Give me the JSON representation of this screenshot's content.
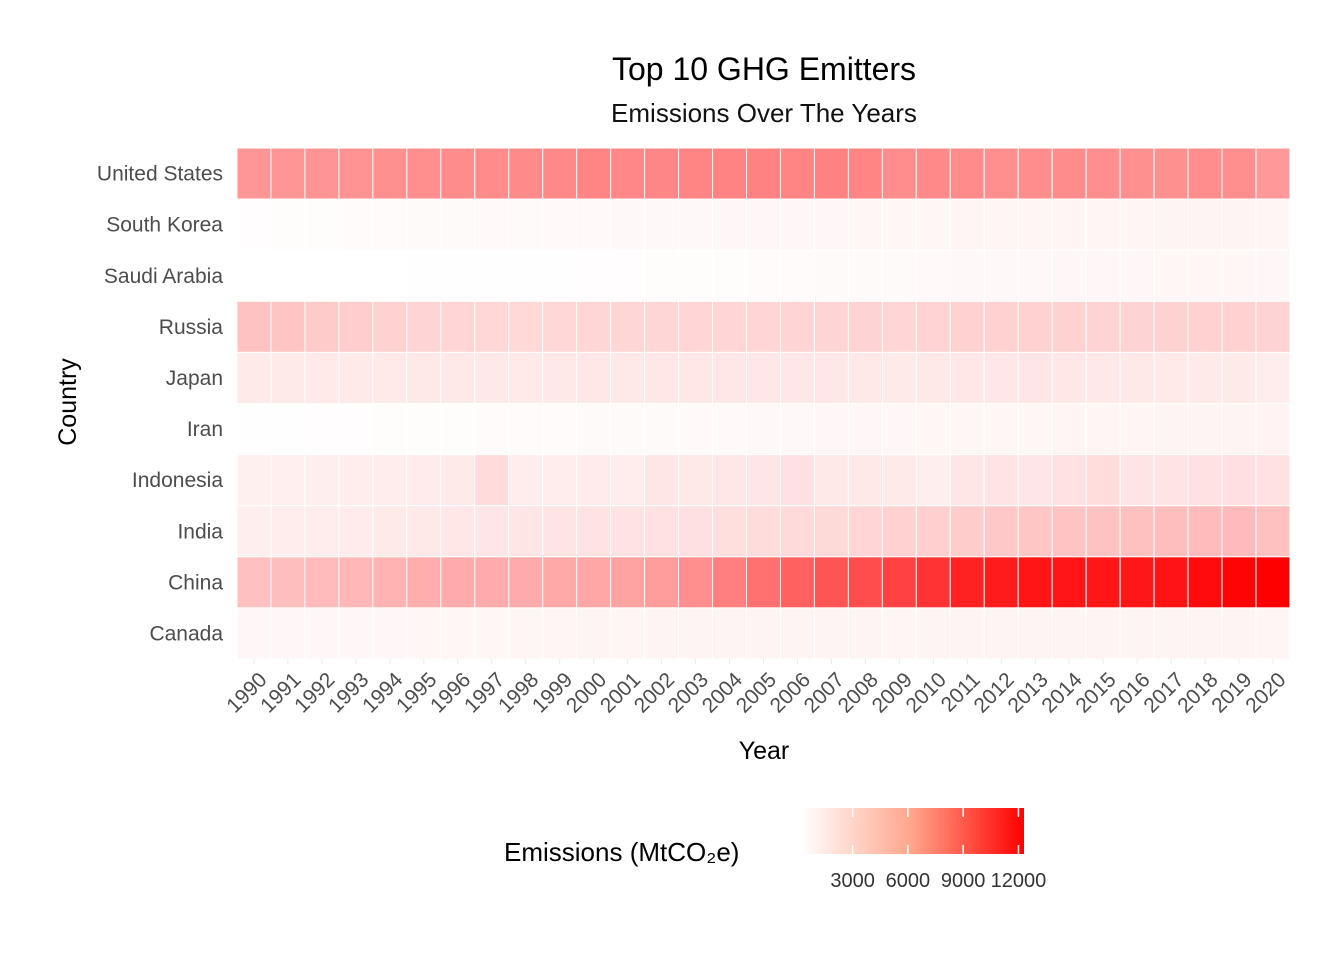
{
  "chart_data": {
    "type": "heatmap",
    "title": "Top 10 GHG Emitters",
    "subtitle": "Emissions Over The Years",
    "xlabel": "Year",
    "ylabel": "Country",
    "x": [
      "1990",
      "1991",
      "1992",
      "1993",
      "1994",
      "1995",
      "1996",
      "1997",
      "1998",
      "1999",
      "2000",
      "2001",
      "2002",
      "2003",
      "2004",
      "2005",
      "2006",
      "2007",
      "2008",
      "2009",
      "2010",
      "2011",
      "2012",
      "2013",
      "2014",
      "2015",
      "2016",
      "2017",
      "2018",
      "2019",
      "2020"
    ],
    "y": [
      "United States",
      "South Korea",
      "Saudi Arabia",
      "Russia",
      "Japan",
      "Iran",
      "Indonesia",
      "India",
      "China",
      "Canada"
    ],
    "values": [
      [
        5200,
        5250,
        5300,
        5380,
        5450,
        5500,
        5650,
        5720,
        5750,
        5800,
        6000,
        5900,
        5950,
        6000,
        6100,
        6120,
        6050,
        6150,
        6000,
        5600,
        5800,
        5700,
        5500,
        5600,
        5650,
        5550,
        5450,
        5450,
        5600,
        5550,
        5100
      ],
      [
        300,
        320,
        340,
        370,
        400,
        420,
        450,
        480,
        430,
        470,
        500,
        520,
        540,
        550,
        570,
        580,
        590,
        600,
        610,
        610,
        640,
        660,
        670,
        680,
        680,
        690,
        690,
        700,
        720,
        700,
        670
      ],
      [
        160,
        180,
        200,
        210,
        220,
        230,
        240,
        250,
        260,
        270,
        290,
        300,
        320,
        340,
        360,
        380,
        400,
        420,
        440,
        460,
        490,
        510,
        530,
        550,
        570,
        590,
        600,
        610,
        620,
        620,
        600
      ],
      [
        3100,
        2950,
        2700,
        2550,
        2350,
        2250,
        2200,
        2100,
        2050,
        2100,
        2150,
        2150,
        2150,
        2200,
        2200,
        2200,
        2250,
        2250,
        2300,
        2200,
        2300,
        2350,
        2400,
        2350,
        2350,
        2300,
        2300,
        2350,
        2400,
        2400,
        2300
      ],
      [
        1200,
        1220,
        1230,
        1220,
        1260,
        1280,
        1290,
        1290,
        1260,
        1300,
        1320,
        1300,
        1330,
        1330,
        1330,
        1330,
        1320,
        1340,
        1270,
        1200,
        1270,
        1320,
        1350,
        1370,
        1320,
        1290,
        1270,
        1250,
        1220,
        1180,
        1120
      ],
      [
        250,
        270,
        290,
        310,
        330,
        340,
        350,
        370,
        390,
        400,
        420,
        440,
        460,
        480,
        500,
        520,
        540,
        560,
        580,
        600,
        610,
        620,
        630,
        640,
        660,
        670,
        690,
        700,
        720,
        740,
        750
      ],
      [
        900,
        950,
        1000,
        1050,
        1050,
        1150,
        1200,
        1900,
        1100,
        1100,
        1150,
        1100,
        1400,
        1300,
        1350,
        1400,
        1600,
        1300,
        1300,
        1200,
        1000,
        1400,
        1500,
        1400,
        1600,
        1800,
        1500,
        1500,
        1600,
        1700,
        1600
      ],
      [
        1000,
        1050,
        1100,
        1150,
        1200,
        1270,
        1330,
        1380,
        1420,
        1500,
        1550,
        1580,
        1630,
        1680,
        1770,
        1850,
        1950,
        2070,
        2200,
        2400,
        2500,
        2620,
        2800,
        2900,
        3050,
        3100,
        3200,
        3300,
        3450,
        3450,
        3200
      ],
      [
        3200,
        3300,
        3450,
        3600,
        3800,
        4100,
        4200,
        4200,
        4200,
        4300,
        4400,
        4600,
        4900,
        5500,
        6300,
        7000,
        7700,
        8300,
        8700,
        9200,
        9900,
        10700,
        11000,
        11300,
        11300,
        11200,
        11200,
        11400,
        11800,
        12100,
        12300
      ],
      [
        580,
        570,
        580,
        590,
        600,
        620,
        640,
        650,
        660,
        670,
        700,
        690,
        700,
        720,
        720,
        720,
        710,
        730,
        720,
        680,
        700,
        710,
        720,
        730,
        730,
        720,
        720,
        730,
        740,
        730,
        670
      ]
    ],
    "color_scale": {
      "low": "#ffffff",
      "high": "#ff0000",
      "limits": [
        200,
        12300
      ]
    },
    "legend": {
      "title": "Emissions (MtCO₂e)",
      "position": "bottom",
      "breaks": [
        "3000",
        "6000",
        "9000",
        "12000"
      ]
    },
    "grid": false
  }
}
